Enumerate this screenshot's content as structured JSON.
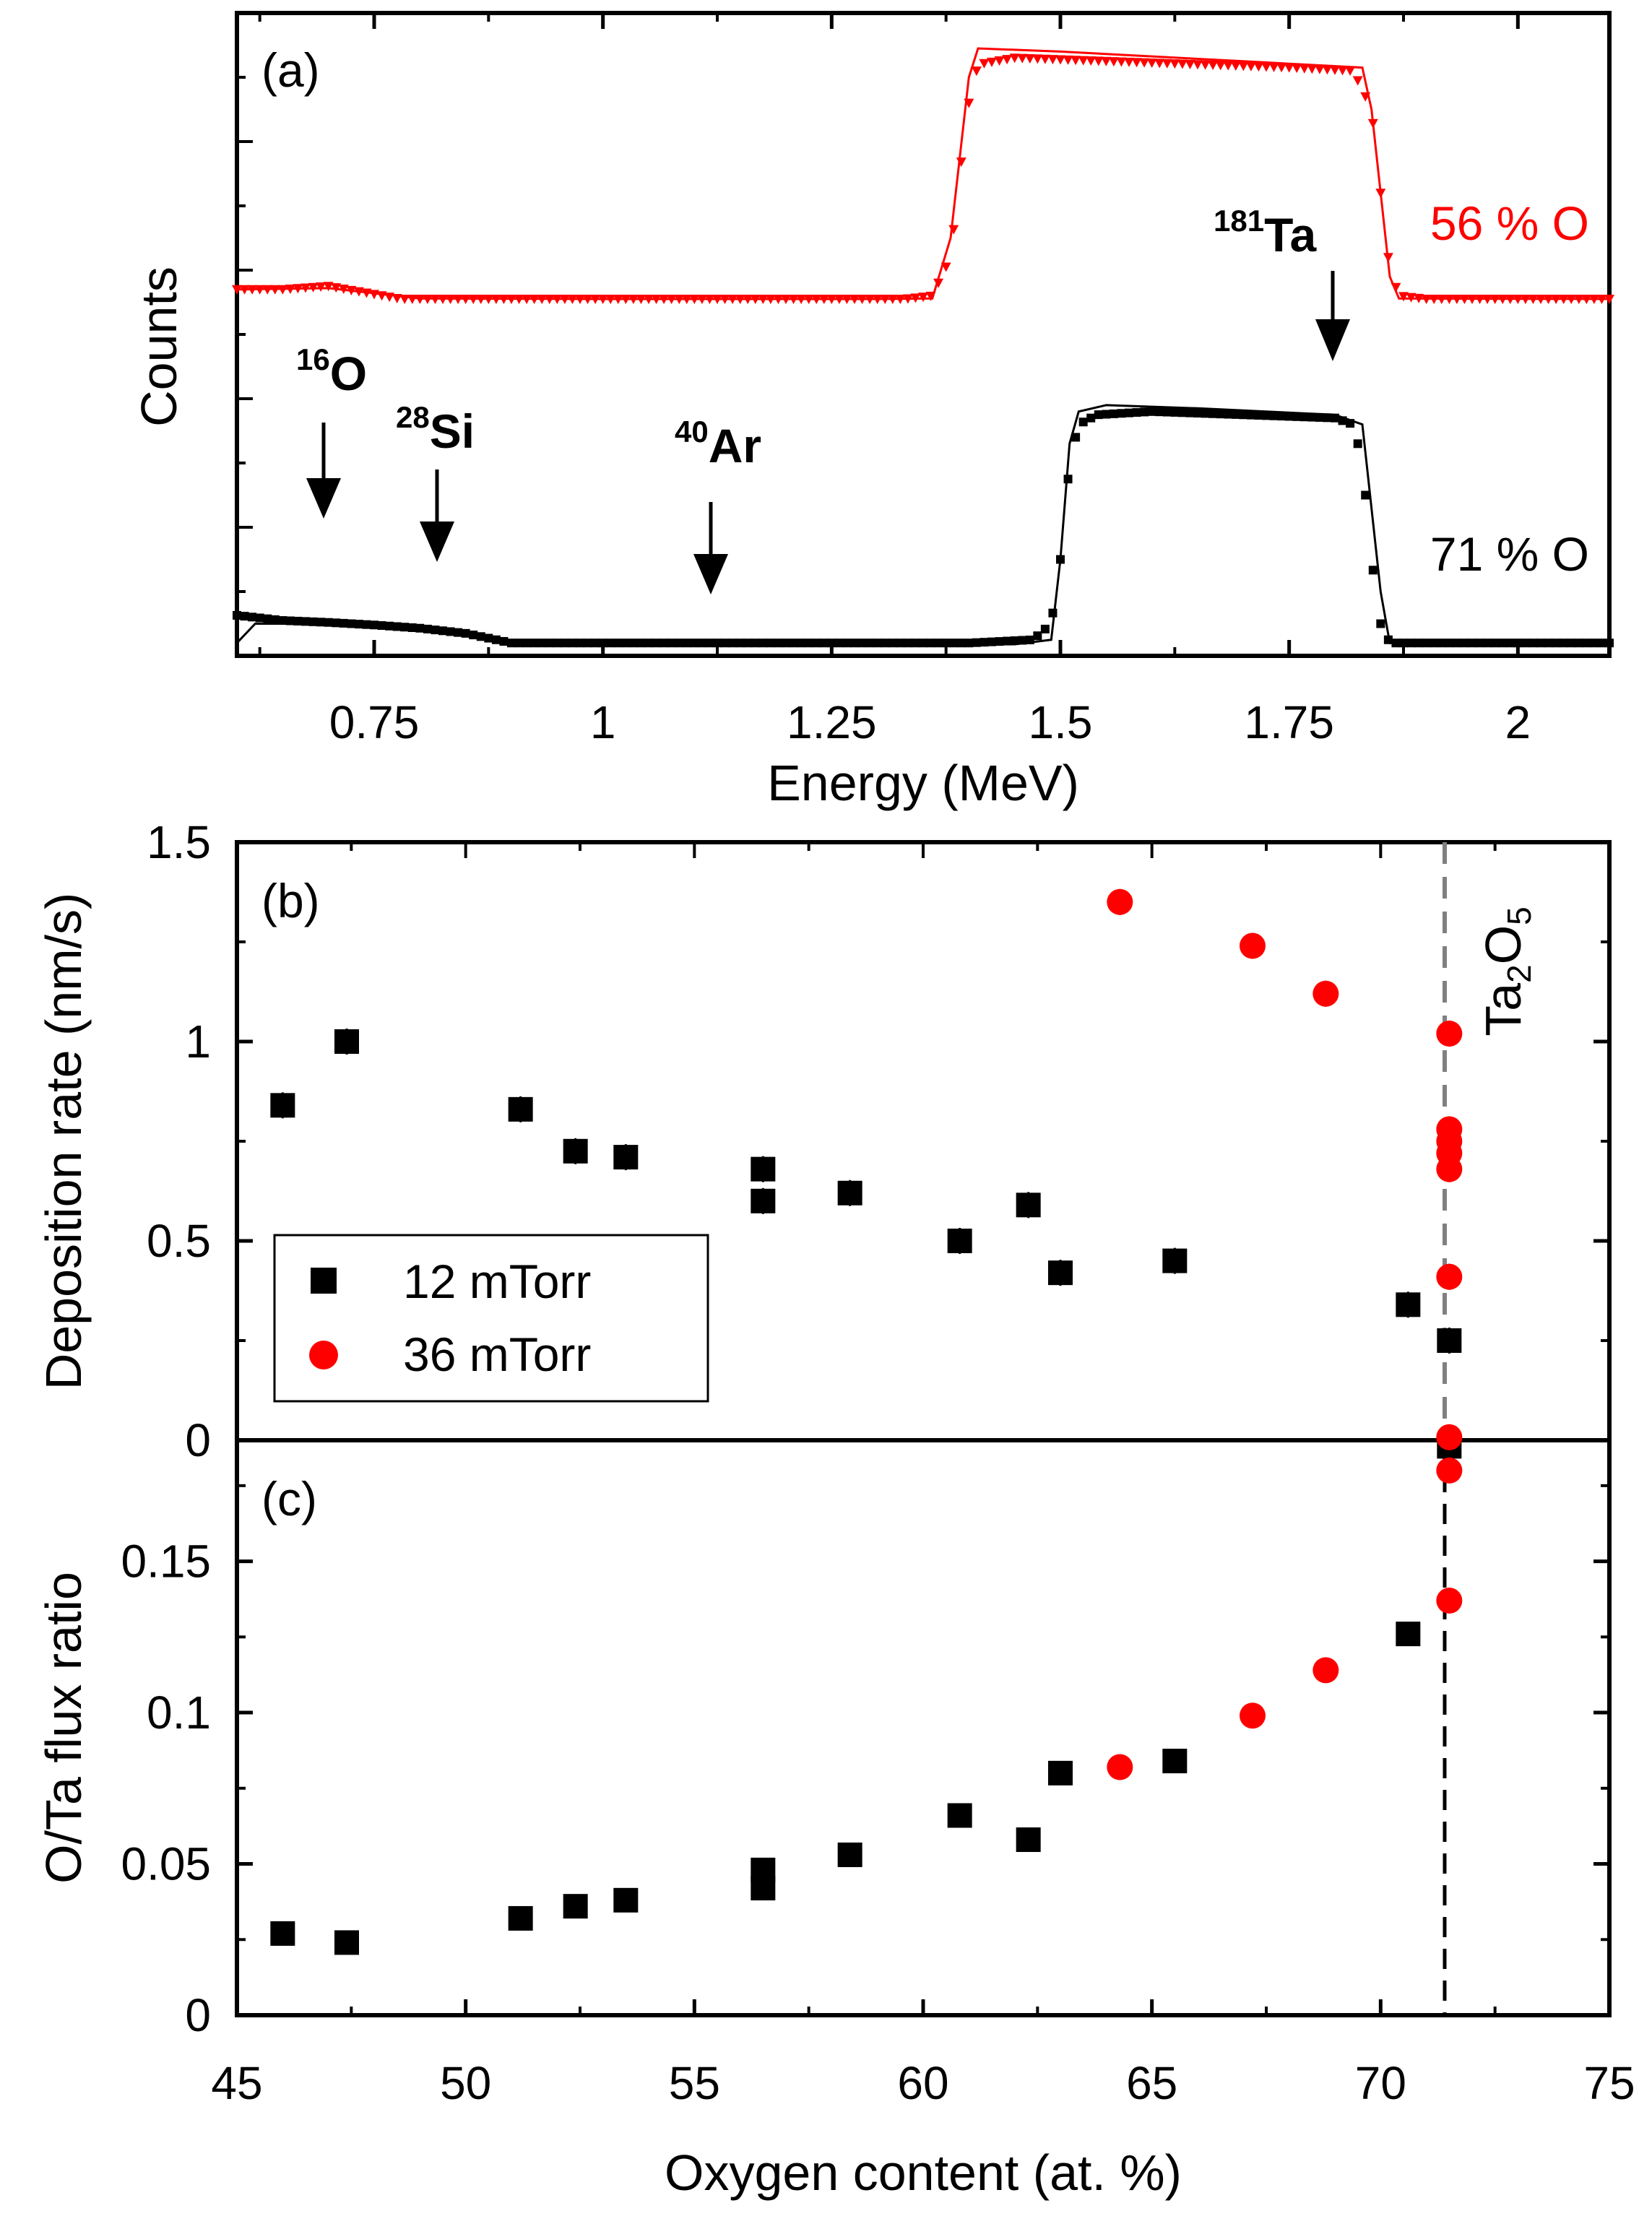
{
  "colors": {
    "series_12": "#000000",
    "series_36": "#ff0000",
    "fit": "#000000",
    "dashed_gray": "#808080"
  },
  "panel_a": {
    "label": "(a)",
    "xlabel": "Energy (MeV)",
    "ylabel": "Counts",
    "xticks": [
      "0.75",
      "1",
      "1.25",
      "1.5",
      "1.75",
      "2"
    ],
    "series_labels": {
      "o56": "56 % O",
      "o71": "71 % O"
    },
    "annotations": {
      "o": {
        "sup": "16",
        "base": "O",
        "x": 0.7
      },
      "si": {
        "sup": "28",
        "base": "Si",
        "x": 0.82
      },
      "ar": {
        "sup": "40",
        "base": "Ar",
        "x": 1.12
      },
      "ta": {
        "sup": "181",
        "base": "Ta",
        "x": 1.8
      }
    }
  },
  "panel_b": {
    "label": "(b)",
    "ylabel": "Deposition rate (nm/s)",
    "yticks": [
      "0",
      "0.5",
      "1",
      "1.5"
    ],
    "compound": {
      "base1": "Ta",
      "sub1": "2",
      "base2": "O",
      "sub2": "5"
    },
    "legend": [
      "12 mTorr",
      "36 mTorr"
    ]
  },
  "panel_c": {
    "label": "(c)",
    "ylabel": "O/Ta flux ratio",
    "yticks": [
      "0",
      "0.05",
      "0.1",
      "0.15"
    ],
    "xlabel": "Oxygen content (at. %)",
    "xticks": [
      "45",
      "50",
      "55",
      "60",
      "65",
      "70",
      "75"
    ]
  },
  "chart_data": [
    {
      "type": "line",
      "panel": "a",
      "title": "(a)",
      "xlabel": "Energy (MeV)",
      "ylabel": "Counts",
      "xlim": [
        0.6,
        2.1
      ],
      "ylim": [
        0,
        1
      ],
      "series": [
        {
          "name": "56 % O",
          "marker": "triangle-down",
          "color": "#ff0000",
          "x": [
            0.6,
            0.65,
            0.7,
            0.74,
            0.78,
            0.85,
            1.0,
            1.2,
            1.33,
            1.36,
            1.38,
            1.39,
            1.4,
            1.41,
            1.45,
            1.55,
            1.65,
            1.75,
            1.82,
            1.84,
            1.85,
            1.86,
            1.87,
            1.9,
            2.0,
            2.1
          ],
          "y": [
            0.57,
            0.57,
            0.575,
            0.565,
            0.555,
            0.555,
            0.555,
            0.555,
            0.555,
            0.56,
            0.62,
            0.75,
            0.86,
            0.92,
            0.93,
            0.925,
            0.92,
            0.915,
            0.91,
            0.85,
            0.72,
            0.6,
            0.56,
            0.555,
            0.555,
            0.555
          ]
        },
        {
          "name": "71 % O",
          "marker": "square",
          "color": "#000000",
          "x": [
            0.6,
            0.65,
            0.7,
            0.75,
            0.8,
            0.85,
            0.9,
            1.0,
            1.2,
            1.4,
            1.47,
            1.49,
            1.5,
            1.51,
            1.52,
            1.54,
            1.6,
            1.7,
            1.8,
            1.82,
            1.83,
            1.84,
            1.85,
            1.86,
            1.9,
            2.0,
            2.1
          ],
          "y": [
            0.063,
            0.055,
            0.052,
            0.048,
            0.043,
            0.035,
            0.02,
            0.02,
            0.02,
            0.02,
            0.025,
            0.05,
            0.15,
            0.3,
            0.36,
            0.375,
            0.38,
            0.375,
            0.37,
            0.36,
            0.3,
            0.15,
            0.05,
            0.02,
            0.02,
            0.02,
            0.02
          ]
        },
        {
          "name": "56 % O fit",
          "marker": "none",
          "color": "#ff0000",
          "x": [
            0.6,
            0.7,
            0.8,
            1.0,
            1.3,
            1.36,
            1.38,
            1.4,
            1.41,
            1.5,
            1.7,
            1.83,
            1.84,
            1.86,
            1.87,
            2.1
          ],
          "y": [
            0.57,
            0.572,
            0.556,
            0.555,
            0.555,
            0.556,
            0.65,
            0.9,
            0.945,
            0.94,
            0.925,
            0.915,
            0.85,
            0.59,
            0.556,
            0.555
          ]
        },
        {
          "name": "71 % O fit",
          "marker": "none",
          "color": "#000000",
          "x": [
            0.6,
            0.62,
            0.7,
            0.85,
            0.9,
            1.0,
            1.45,
            1.49,
            1.5,
            1.51,
            1.52,
            1.55,
            1.65,
            1.8,
            1.83,
            1.85,
            1.86,
            2.1
          ],
          "y": [
            0.02,
            0.05,
            0.05,
            0.035,
            0.018,
            0.018,
            0.018,
            0.025,
            0.15,
            0.33,
            0.38,
            0.39,
            0.385,
            0.375,
            0.36,
            0.1,
            0.02,
            0.018
          ]
        }
      ]
    },
    {
      "type": "scatter",
      "panel": "b",
      "title": "(b)",
      "ylabel": "Deposition rate (nm/s)",
      "xlim": [
        45,
        75
      ],
      "ylim": [
        0,
        1.5
      ],
      "series": [
        {
          "name": "12 mTorr",
          "marker": "square",
          "color": "#000000",
          "x": [
            46.0,
            47.4,
            51.2,
            52.4,
            53.5,
            56.5,
            56.5,
            58.4,
            60.8,
            62.3,
            63.0,
            65.5,
            70.6,
            71.5
          ],
          "y": [
            0.84,
            1.0,
            0.83,
            0.725,
            0.71,
            0.68,
            0.6,
            0.62,
            0.5,
            0.59,
            0.42,
            0.45,
            0.34,
            0.25
          ]
        },
        {
          "name": "36 mTorr",
          "marker": "circle",
          "color": "#ff0000",
          "x": [
            64.3,
            67.2,
            68.8,
            71.5,
            71.5,
            71.5,
            71.5,
            71.5,
            71.5
          ],
          "y": [
            1.35,
            1.24,
            1.12,
            1.02,
            0.78,
            0.75,
            0.72,
            0.68,
            0.41
          ]
        }
      ],
      "vline": {
        "x": 71.4,
        "style": "dashed",
        "label": "Ta2O5"
      }
    },
    {
      "type": "scatter",
      "panel": "c",
      "title": "(c)",
      "xlabel": "Oxygen content (at. %)",
      "ylabel": "O/Ta flux ratio",
      "xlim": [
        45,
        75
      ],
      "ylim": [
        0,
        0.19
      ],
      "series": [
        {
          "name": "12 mTorr",
          "marker": "square",
          "color": "#000000",
          "x": [
            46.0,
            47.4,
            51.2,
            52.4,
            53.5,
            56.5,
            56.5,
            58.4,
            60.8,
            62.3,
            63.0,
            65.5,
            70.6,
            71.5
          ],
          "y": [
            0.027,
            0.024,
            0.032,
            0.036,
            0.038,
            0.048,
            0.042,
            0.053,
            0.066,
            0.058,
            0.08,
            0.084,
            0.126,
            0.188
          ]
        },
        {
          "name": "36 mTorr",
          "marker": "circle",
          "color": "#ff0000",
          "x": [
            64.3,
            67.2,
            68.8,
            71.5,
            71.5,
            71.5
          ],
          "y": [
            0.082,
            0.099,
            0.114,
            0.137,
            0.18,
            0.191
          ]
        }
      ],
      "vline": {
        "x": 71.4,
        "style": "dashed"
      }
    }
  ]
}
